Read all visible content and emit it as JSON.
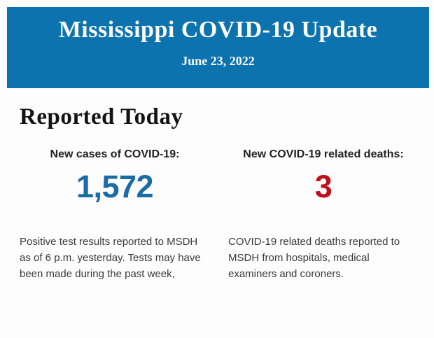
{
  "header": {
    "title": "Mississippi COVID-19 Update",
    "date": "June 23, 2022",
    "bg_color": "#0d73ae",
    "text_color": "#fdfdfd"
  },
  "section": {
    "title": "Reported Today"
  },
  "stats": {
    "cases": {
      "label": "New cases of COVID-19:",
      "value": "1,572",
      "value_color": "#1a6ba6",
      "description": "Positive test results reported to MSDH as of 6 p.m. yesterday. Tests may have been made during the past week,"
    },
    "deaths": {
      "label": "New COVID-19 related deaths:",
      "value": "3",
      "value_color": "#c00f1c",
      "description": "COVID-19 related deaths reported to MSDH from hospitals, medical examiners and coroners."
    }
  }
}
